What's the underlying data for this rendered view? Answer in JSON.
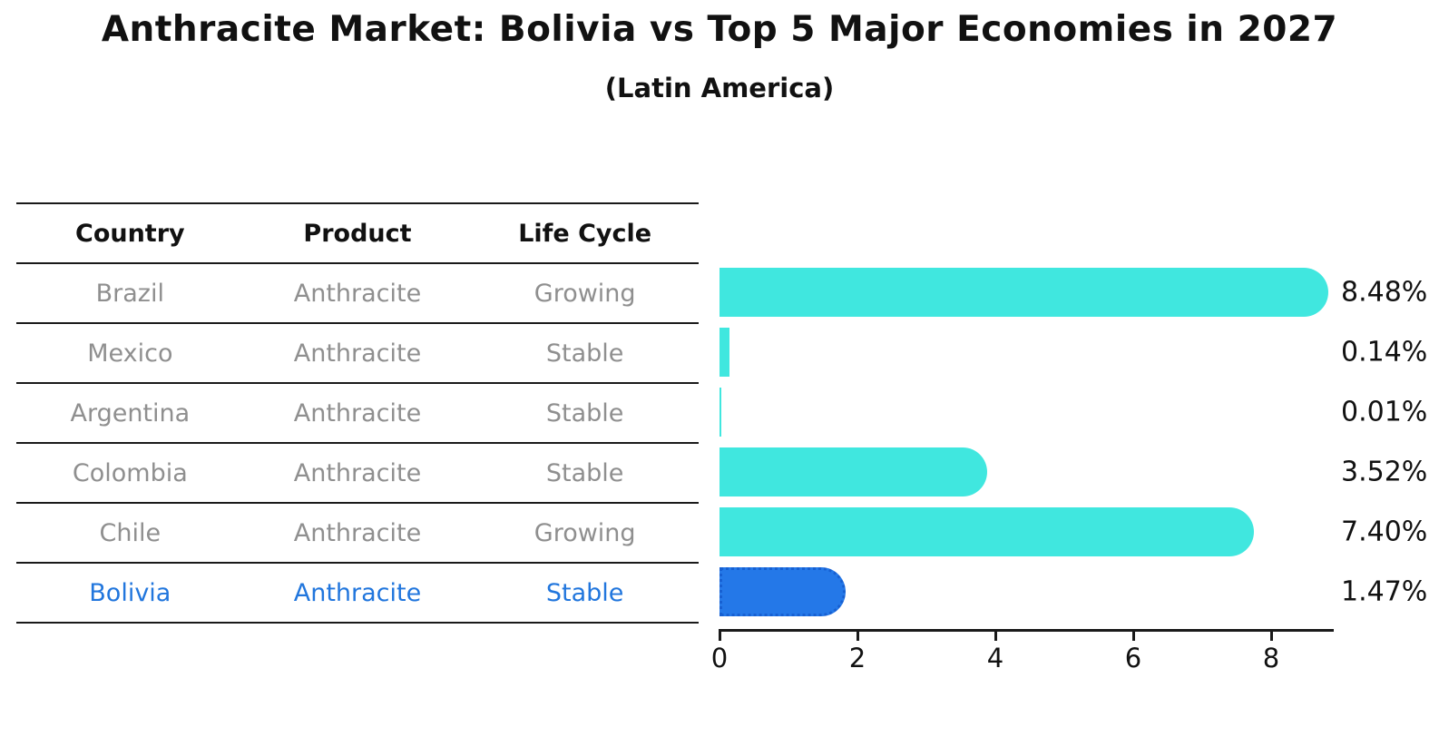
{
  "title": "Anthracite Market: Bolivia vs Top 5 Major Economies in 2027",
  "subtitle": "(Latin America)",
  "table": {
    "headers": [
      "Country",
      "Product",
      "Life Cycle"
    ],
    "rows": [
      {
        "country": "Brazil",
        "product": "Anthracite",
        "life_cycle": "Growing",
        "highlighted": false
      },
      {
        "country": "Mexico",
        "product": "Anthracite",
        "life_cycle": "Stable",
        "highlighted": false
      },
      {
        "country": "Argentina",
        "product": "Anthracite",
        "life_cycle": "Stable",
        "highlighted": false
      },
      {
        "country": "Colombia",
        "product": "Anthracite",
        "life_cycle": "Stable",
        "highlighted": false
      },
      {
        "country": "Chile",
        "product": "Anthracite",
        "life_cycle": "Growing",
        "highlighted": false
      },
      {
        "country": "Bolivia",
        "product": "Anthracite",
        "life_cycle": "Stable",
        "highlighted": true
      }
    ]
  },
  "chart_data": {
    "type": "bar",
    "orientation": "horizontal",
    "categories": [
      "Brazil",
      "Mexico",
      "Argentina",
      "Colombia",
      "Chile",
      "Bolivia"
    ],
    "values": [
      8.48,
      0.14,
      0.01,
      3.52,
      7.4,
      1.47
    ],
    "value_labels": [
      "8.48%",
      "0.14%",
      "0.01%",
      "3.52%",
      "7.40%",
      "1.47%"
    ],
    "xticks": [
      "0",
      "2",
      "4",
      "6",
      "8"
    ],
    "xtick_values": [
      0,
      2,
      4,
      6,
      8
    ],
    "xlim": [
      0,
      8.9
    ],
    "grid": false,
    "legend": null,
    "bar_color": "#40e7df",
    "highlight_bar_color": "#2478e8",
    "highlight_border_color": "#1760d2",
    "highlight_index": 5
  },
  "colors": {
    "title_text": "#111111",
    "table_line": "#1a1a1a",
    "header_text": "#111111",
    "row_text": "#8f8f8f",
    "highlight_text": "#2176dd",
    "axis": "#1a1a1a",
    "value_label_text": "#111111"
  }
}
